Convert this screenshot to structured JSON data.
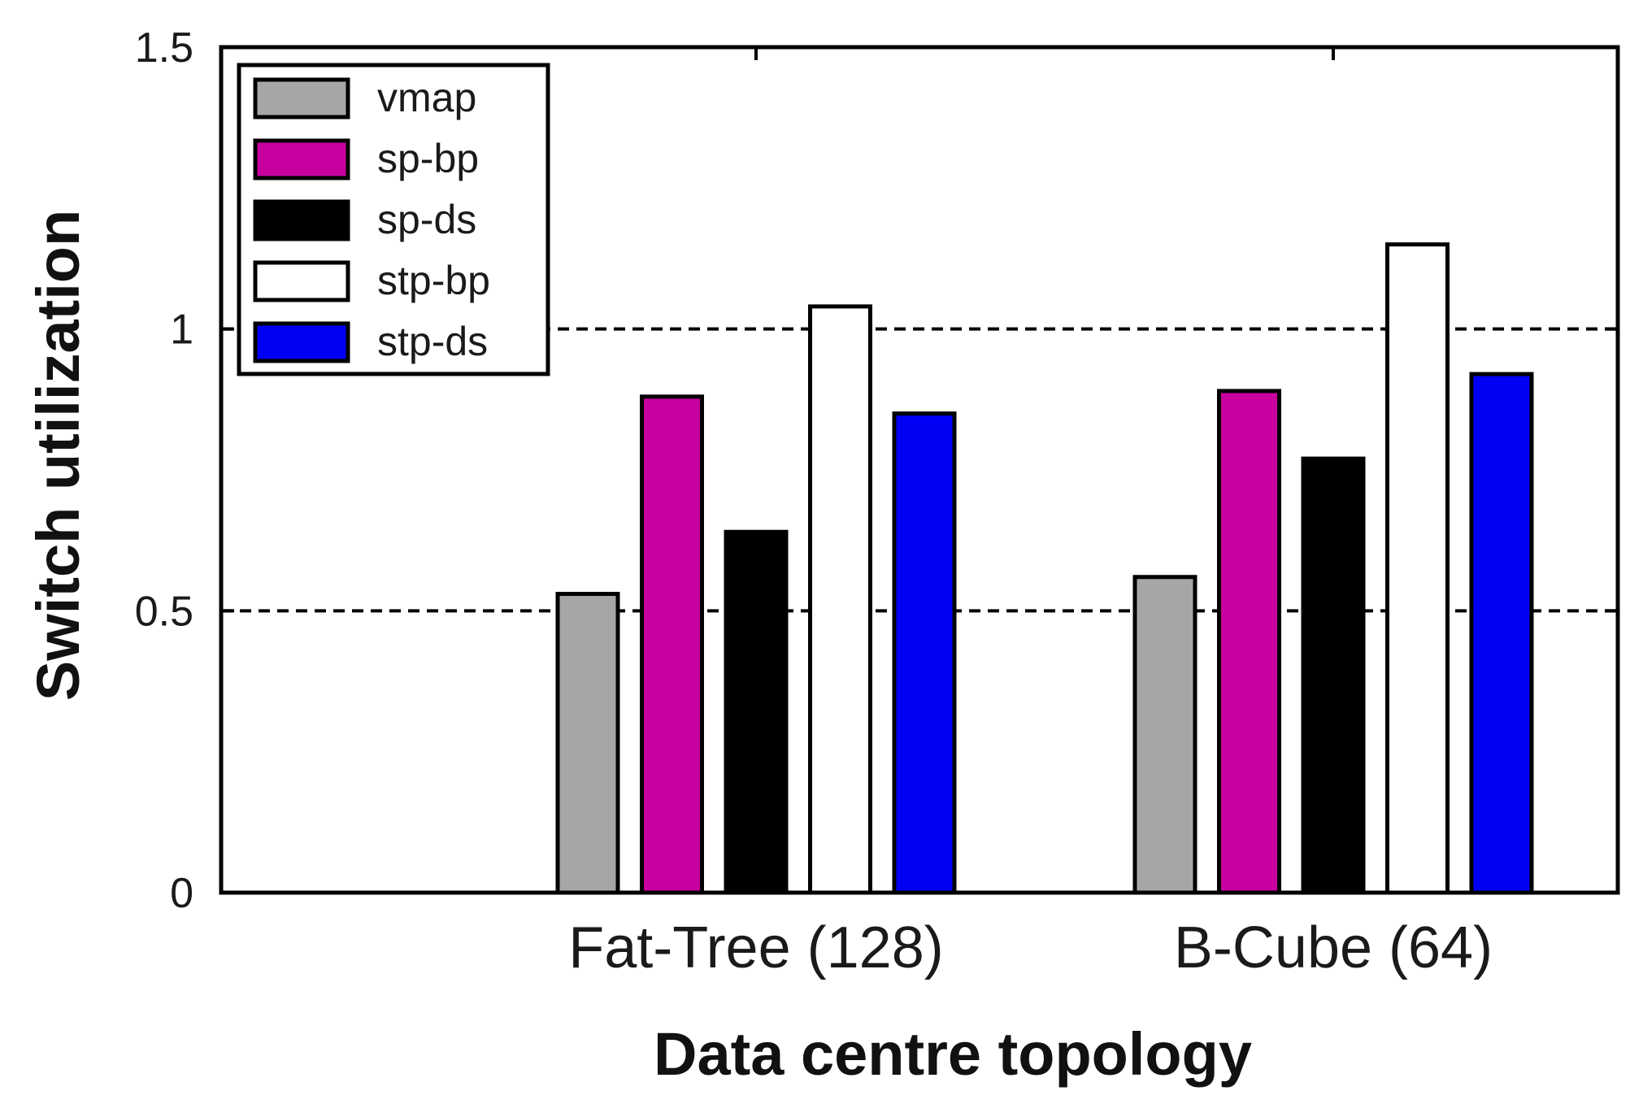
{
  "chart_data": {
    "type": "bar",
    "title": "",
    "xlabel": "Data centre topology",
    "ylabel": "Switch utilization",
    "ylim": [
      0,
      1.5
    ],
    "yticks": [
      0,
      0.5,
      1,
      1.5
    ],
    "ytick_labels": [
      "0",
      "0.5",
      "1",
      "1.5"
    ],
    "gridlines_at": [
      0.5,
      1
    ],
    "grid_style": "dashed",
    "legend_position": "top-left",
    "categories": [
      "Fat-Tree (128)",
      "B-Cube (64)"
    ],
    "series": [
      {
        "name": "vmap",
        "color": "#a6a6a6",
        "values": [
          0.53,
          0.56
        ]
      },
      {
        "name": "sp-bp",
        "color": "#c800a0",
        "values": [
          0.88,
          0.89
        ]
      },
      {
        "name": "sp-ds",
        "color": "#000000",
        "values": [
          0.64,
          0.77
        ]
      },
      {
        "name": "stp-bp",
        "color": "#ffffff",
        "values": [
          1.04,
          1.15
        ]
      },
      {
        "name": "stp-ds",
        "color": "#0000f5",
        "values": [
          0.85,
          0.92
        ]
      }
    ]
  }
}
